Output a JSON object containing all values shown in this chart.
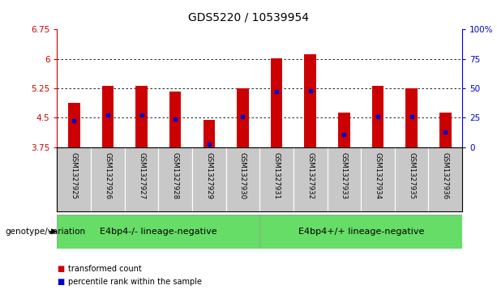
{
  "title": "GDS5220 / 10539954",
  "samples": [
    "GSM1327925",
    "GSM1327926",
    "GSM1327927",
    "GSM1327928",
    "GSM1327929",
    "GSM1327930",
    "GSM1327931",
    "GSM1327932",
    "GSM1327933",
    "GSM1327934",
    "GSM1327935",
    "GSM1327936"
  ],
  "bar_values": [
    4.88,
    5.3,
    5.32,
    5.17,
    4.45,
    5.25,
    6.01,
    6.12,
    4.62,
    5.3,
    5.25,
    4.63
  ],
  "blue_dot_values": [
    4.42,
    4.56,
    4.56,
    4.47,
    3.83,
    4.52,
    5.17,
    5.18,
    4.08,
    4.53,
    4.52,
    4.13
  ],
  "baseline": 3.75,
  "ylim": [
    3.75,
    6.75
  ],
  "yticks_left": [
    3.75,
    4.5,
    5.25,
    6.0,
    6.75
  ],
  "ytick_labels_left": [
    "3.75",
    "4.5",
    "5.25",
    "6",
    "6.75"
  ],
  "yticks_right_vals": [
    0,
    25,
    50,
    75,
    100
  ],
  "ytick_labels_right": [
    "0",
    "25",
    "50",
    "75",
    "100%"
  ],
  "bar_color": "#cc0000",
  "dot_color": "#0000cc",
  "grid_color": "#000000",
  "group1_label": "E4bp4-/- lineage-negative",
  "group2_label": "E4bp4+/+ lineage-negative",
  "group1_count": 6,
  "group2_count": 6,
  "group_bg_color": "#66dd66",
  "sample_bg_color": "#c8c8c8",
  "legend_red_label": "transformed count",
  "legend_blue_label": "percentile rank within the sample",
  "ylabel_left_color": "#cc0000",
  "ylabel_right_color": "#0000cc",
  "title_fontsize": 10,
  "tick_fontsize": 7.5,
  "bar_width": 0.35,
  "genotype_label": "genotype/variation"
}
